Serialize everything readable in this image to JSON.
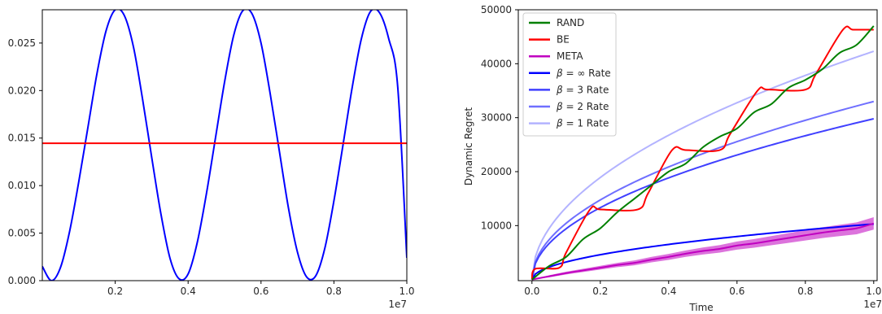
{
  "chart_data": [
    {
      "type": "line",
      "title": "",
      "xlabel": "",
      "ylabel": "",
      "x_offset_label": "1e7",
      "xlim": [
        0,
        1.0
      ],
      "ylim": [
        0,
        0.0285
      ],
      "xticks": [
        "0.2",
        "0.4",
        "0.6",
        "0.8",
        "1.0"
      ],
      "yticks": [
        "0.000",
        "0.005",
        "0.010",
        "0.015",
        "0.020",
        "0.025"
      ],
      "grid": false,
      "series": [
        {
          "color": "#0000ff",
          "x": [
            0.0,
            0.025,
            0.05,
            0.075,
            0.1,
            0.125,
            0.15,
            0.175,
            0.2,
            0.225,
            0.25,
            0.275,
            0.3,
            0.325,
            0.35,
            0.375,
            0.4,
            0.425,
            0.45,
            0.475,
            0.5,
            0.525,
            0.55,
            0.575,
            0.6,
            0.625,
            0.65,
            0.675,
            0.7,
            0.725,
            0.75,
            0.775,
            0.8,
            0.825,
            0.85,
            0.875,
            0.9,
            0.925,
            0.95,
            0.975,
            1.0
          ],
          "values": [
            0.0015,
            0.0,
            0.0014,
            0.0052,
            0.0104,
            0.0161,
            0.0218,
            0.0263,
            0.0285,
            0.0279,
            0.0246,
            0.0191,
            0.013,
            0.0071,
            0.0024,
            0.0002,
            0.0007,
            0.004,
            0.0091,
            0.015,
            0.0209,
            0.0258,
            0.0284,
            0.0281,
            0.025,
            0.0197,
            0.0137,
            0.0077,
            0.003,
            0.0004,
            0.0005,
            0.0034,
            0.0084,
            0.0143,
            0.0203,
            0.0254,
            0.0283,
            0.0282,
            0.0255,
            0.0204,
            0.0024
          ]
        },
        {
          "color": "#ff0000",
          "x": [
            0.0,
            1.0
          ],
          "values": [
            0.01445,
            0.01445
          ]
        }
      ]
    },
    {
      "type": "line",
      "title": "",
      "xlabel": "Time",
      "ylabel": "Dynamic Regret",
      "x_offset_label": "1e7",
      "xlim": [
        -0.04,
        1.01
      ],
      "ylim": [
        -200,
        50000
      ],
      "xticks": [
        "0.0",
        "0.2",
        "0.4",
        "0.6",
        "0.8",
        "1.0"
      ],
      "yticks": [
        "10000",
        "20000",
        "30000",
        "40000",
        "50000"
      ],
      "grid": false,
      "legend_position": "top-left",
      "series": [
        {
          "name": "RAND",
          "color": "#008000",
          "x": [
            0.0,
            0.05,
            0.1,
            0.15,
            0.2,
            0.25,
            0.3,
            0.35,
            0.4,
            0.45,
            0.5,
            0.55,
            0.6,
            0.65,
            0.7,
            0.75,
            0.8,
            0.85,
            0.9,
            0.95,
            1.0
          ],
          "values": [
            0,
            2500,
            4200,
            7500,
            9500,
            12500,
            15000,
            17500,
            20000,
            21500,
            24500,
            26500,
            28000,
            31000,
            32500,
            35500,
            37000,
            39000,
            42000,
            43500,
            47000
          ]
        },
        {
          "name": "BE",
          "color": "#ff0000",
          "x": [
            0.0,
            0.01,
            0.08,
            0.1,
            0.17,
            0.2,
            0.31,
            0.34,
            0.41,
            0.45,
            0.55,
            0.58,
            0.66,
            0.69,
            0.8,
            0.83,
            0.91,
            0.94,
            1.0
          ],
          "values": [
            0,
            2000,
            2200,
            5000,
            13000,
            13000,
            13000,
            16000,
            24000,
            24000,
            24000,
            27000,
            35000,
            35200,
            35200,
            38000,
            46300,
            46300,
            46300
          ]
        },
        {
          "name": "META",
          "color": "#c000c0",
          "band": true,
          "x": [
            0.0,
            0.05,
            0.1,
            0.15,
            0.2,
            0.25,
            0.3,
            0.35,
            0.4,
            0.45,
            0.5,
            0.55,
            0.6,
            0.65,
            0.7,
            0.75,
            0.8,
            0.85,
            0.9,
            0.95,
            1.0
          ],
          "values": [
            0,
            600,
            1200,
            1700,
            2200,
            2700,
            3100,
            3700,
            4200,
            4800,
            5300,
            5700,
            6300,
            6700,
            7200,
            7700,
            8200,
            8700,
            9100,
            9500,
            10400
          ],
          "band_halfwidth": [
            0,
            200,
            250,
            300,
            350,
            400,
            450,
            500,
            550,
            600,
            650,
            700,
            750,
            800,
            850,
            900,
            950,
            1000,
            1050,
            1100,
            1150
          ]
        },
        {
          "name": "β = ∞ Rate",
          "name_parts": [
            "β",
            " = ∞ Rate"
          ],
          "color": "#0000ff",
          "formula": {
            "c": 10300,
            "p": 0.5
          }
        },
        {
          "name": "β = 3 Rate",
          "name_parts": [
            "β",
            " = 3 Rate"
          ],
          "color": "#4040ff",
          "formula": {
            "c": 29800,
            "p": 0.5
          }
        },
        {
          "name": "β = 2 Rate",
          "name_parts": [
            "β",
            " = 2 Rate"
          ],
          "color": "#6f6fff",
          "formula": {
            "c": 33000,
            "p": 0.5
          }
        },
        {
          "name": "β = 1 Rate",
          "name_parts": [
            "β",
            " = 1 Rate"
          ],
          "color": "#b3b3ff",
          "formula": {
            "c": 42300,
            "p": 0.5
          }
        }
      ]
    }
  ]
}
